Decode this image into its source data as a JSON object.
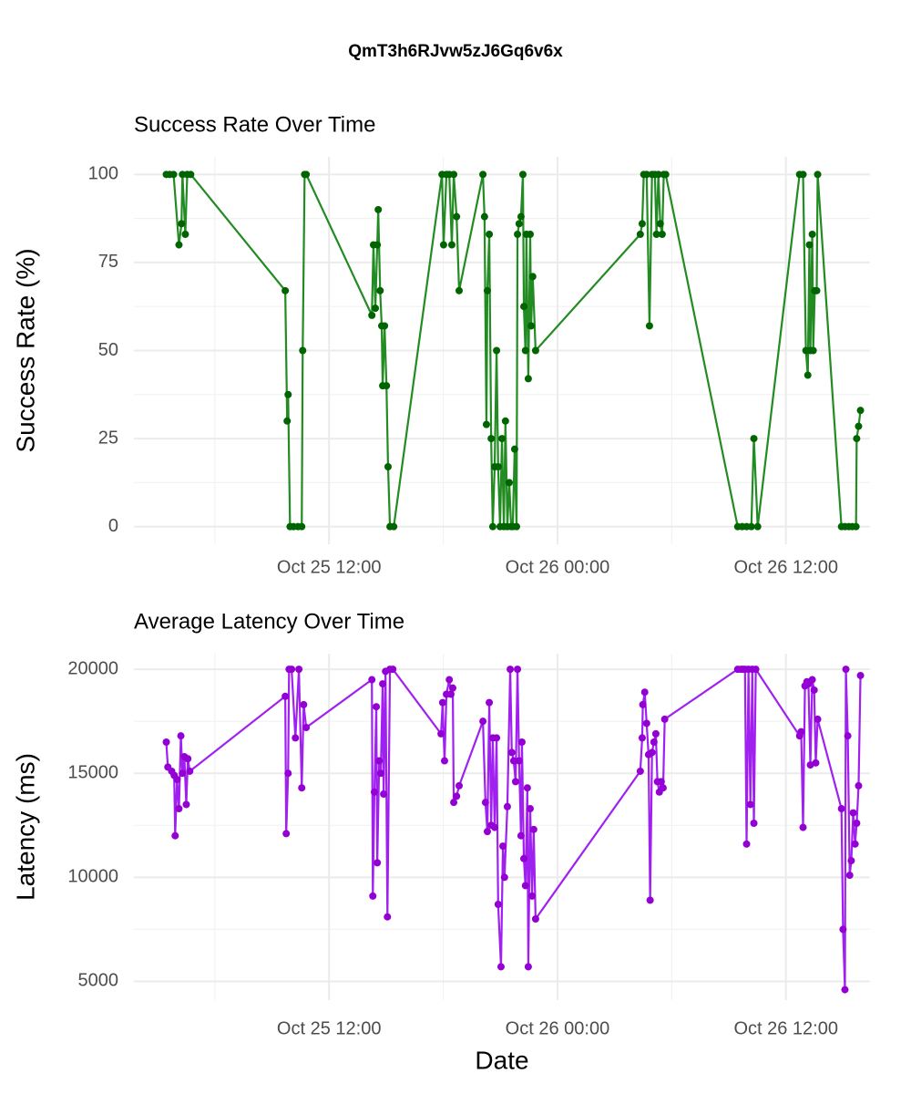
{
  "title": "QmT3h6RJvw5zJ6Gq6v6x",
  "chart_data": [
    {
      "type": "line",
      "title": "Success Rate Over Time",
      "ylabel": "Success Rate (%)",
      "color": "#228B22",
      "point_color": "#006400",
      "grid": true,
      "xlim": [
        "Oct 25 01:45",
        "Oct 26 16:25"
      ],
      "xticks": [
        "Oct 25 12:00",
        "Oct 26 00:00",
        "Oct 26 12:00"
      ],
      "ylim": [
        -5,
        105
      ],
      "yticks": [
        0,
        25,
        50,
        75,
        100
      ],
      "x": [
        "Oct 25 03:27",
        "Oct 25 03:38",
        "Oct 25 03:50",
        "Oct 25 04:07",
        "Oct 25 04:15",
        "Oct 25 04:18",
        "Oct 25 04:27",
        "Oct 25 04:33",
        "Oct 25 04:44",
        "Oct 25 09:42",
        "Oct 25 09:48",
        "Oct 25 09:51",
        "Oct 25 09:57",
        "Oct 25 10:08",
        "Oct 25 10:22",
        "Oct 25 10:34",
        "Oct 25 10:37",
        "Oct 25 10:43",
        "Oct 25 10:48",
        "Oct 25 14:15",
        "Oct 25 14:20",
        "Oct 25 14:26",
        "Oct 25 14:32",
        "Oct 25 14:35",
        "Oct 25 14:41",
        "Oct 25 14:46",
        "Oct 25 14:49",
        "Oct 25 14:55",
        "Oct 25 15:01",
        "Oct 25 15:06",
        "Oct 25 15:12",
        "Oct 25 15:24",
        "Oct 25 17:56",
        "Oct 25 18:01",
        "Oct 25 18:10",
        "Oct 25 18:19",
        "Oct 25 18:27",
        "Oct 25 18:33",
        "Oct 25 18:42",
        "Oct 25 18:50",
        "Oct 25 20:05",
        "Oct 25 20:10",
        "Oct 25 20:16",
        "Oct 25 20:19",
        "Oct 25 20:25",
        "Oct 25 20:31",
        "Oct 25 20:36",
        "Oct 25 20:42",
        "Oct 25 20:48",
        "Oct 25 20:53",
        "Oct 25 20:59",
        "Oct 25 21:05",
        "Oct 25 21:11",
        "Oct 25 21:16",
        "Oct 25 21:22",
        "Oct 25 21:28",
        "Oct 25 21:34",
        "Oct 25 21:39",
        "Oct 25 21:45",
        "Oct 25 21:51",
        "Oct 25 21:54",
        "Oct 25 21:59",
        "Oct 25 22:05",
        "Oct 25 22:11",
        "Oct 25 22:14",
        "Oct 25 22:19",
        "Oct 25 22:22",
        "Oct 25 22:28",
        "Oct 25 22:34",
        "Oct 25 22:37",
        "Oct 25 22:42",
        "Oct 25 22:51",
        "Oct 26 04:21",
        "Oct 26 04:27",
        "Oct 26 04:32",
        "Oct 26 04:41",
        "Oct 26 04:50",
        "Oct 26 04:58",
        "Oct 26 05:07",
        "Oct 26 05:12",
        "Oct 26 05:18",
        "Oct 26 05:24",
        "Oct 26 05:30",
        "Oct 26 05:35",
        "Oct 26 05:41",
        "Oct 26 09:28",
        "Oct 26 09:42",
        "Oct 26 09:56",
        "Oct 26 10:11",
        "Oct 26 10:19",
        "Oct 26 10:31",
        "Oct 26 12:43",
        "Oct 26 12:54",
        "Oct 26 13:03",
        "Oct 26 13:09",
        "Oct 26 13:14",
        "Oct 26 13:17",
        "Oct 26 13:23",
        "Oct 26 13:26",
        "Oct 26 13:31",
        "Oct 26 13:37",
        "Oct 26 13:40",
        "Oct 26 14:55",
        "Oct 26 15:06",
        "Oct 26 15:18",
        "Oct 26 15:29",
        "Oct 26 15:41",
        "Oct 26 15:43",
        "Oct 26 15:49",
        "Oct 26 15:55"
      ],
      "values": [
        100,
        100,
        100,
        80,
        86,
        100,
        83,
        100,
        100,
        67,
        30,
        37.5,
        0,
        0,
        0,
        0,
        50,
        100,
        100,
        60,
        80,
        62,
        80,
        90,
        67,
        57,
        40,
        57,
        40,
        17,
        0,
        0,
        100,
        80,
        100,
        100,
        80,
        100,
        88,
        67,
        100,
        88,
        29,
        67,
        83,
        25,
        0,
        17,
        50,
        17,
        0,
        25,
        0,
        30,
        0,
        12.5,
        0,
        0,
        22,
        0,
        83,
        86,
        88,
        100,
        62.5,
        50,
        83,
        42,
        83,
        57,
        71,
        50,
        83,
        86,
        100,
        100,
        57,
        100,
        100,
        83,
        100,
        86,
        83,
        100,
        100,
        0,
        0,
        0,
        0,
        25,
        0,
        100,
        100,
        50,
        43,
        80,
        50,
        83,
        50,
        67,
        67,
        100,
        0,
        0,
        0,
        0,
        0,
        25,
        28.5,
        33
      ]
    },
    {
      "type": "line",
      "title": "Average Latency Over Time",
      "ylabel": "Latency (ms)",
      "xlabel": "Date",
      "color": "#A020F0",
      "point_color": "#9400D3",
      "grid": true,
      "xlim": [
        "Oct 25 01:45",
        "Oct 26 16:25"
      ],
      "xticks": [
        "Oct 25 12:00",
        "Oct 26 00:00",
        "Oct 26 12:00"
      ],
      "ylim": [
        4100,
        20750
      ],
      "yticks": [
        5000,
        10000,
        15000,
        20000
      ],
      "x": [
        "Oct 25 03:27",
        "Oct 25 03:32",
        "Oct 25 03:44",
        "Oct 25 03:52",
        "Oct 25 03:55",
        "Oct 25 04:01",
        "Oct 25 04:07",
        "Oct 25 04:13",
        "Oct 25 04:18",
        "Oct 25 04:24",
        "Oct 25 04:30",
        "Oct 25 04:35",
        "Oct 25 04:41",
        "Oct 25 09:42",
        "Oct 25 09:45",
        "Oct 25 09:51",
        "Oct 25 09:54",
        "Oct 25 10:02",
        "Oct 25 10:14",
        "Oct 25 10:25",
        "Oct 25 10:34",
        "Oct 25 10:40",
        "Oct 25 10:48",
        "Oct 25 14:15",
        "Oct 25 14:18",
        "Oct 25 14:23",
        "Oct 25 14:29",
        "Oct 25 14:32",
        "Oct 25 14:38",
        "Oct 25 14:43",
        "Oct 25 14:49",
        "Oct 25 14:52",
        "Oct 25 14:58",
        "Oct 25 15:04",
        "Oct 25 15:12",
        "Oct 25 15:21",
        "Oct 25 17:53",
        "Oct 25 17:58",
        "Oct 25 18:04",
        "Oct 25 18:10",
        "Oct 25 18:19",
        "Oct 25 18:24",
        "Oct 25 18:30",
        "Oct 25 18:33",
        "Oct 25 18:42",
        "Oct 25 18:50",
        "Oct 25 20:05",
        "Oct 25 20:13",
        "Oct 25 20:19",
        "Oct 25 20:25",
        "Oct 25 20:31",
        "Oct 25 20:36",
        "Oct 25 20:42",
        "Oct 25 20:48",
        "Oct 25 20:53",
        "Oct 25 21:02",
        "Oct 25 21:08",
        "Oct 25 21:13",
        "Oct 25 21:22",
        "Oct 25 21:31",
        "Oct 25 21:36",
        "Oct 25 21:42",
        "Oct 25 21:48",
        "Oct 25 21:54",
        "Oct 25 21:59",
        "Oct 25 22:05",
        "Oct 25 22:08",
        "Oct 25 22:14",
        "Oct 25 22:19",
        "Oct 25 22:25",
        "Oct 25 22:28",
        "Oct 25 22:34",
        "Oct 25 22:40",
        "Oct 25 22:45",
        "Oct 25 22:51",
        "Oct 26 04:21",
        "Oct 26 04:27",
        "Oct 26 04:29",
        "Oct 26 04:35",
        "Oct 26 04:41",
        "Oct 26 04:47",
        "Oct 26 04:52",
        "Oct 26 04:58",
        "Oct 26 05:04",
        "Oct 26 05:10",
        "Oct 26 05:15",
        "Oct 26 05:21",
        "Oct 26 05:27",
        "Oct 26 05:33",
        "Oct 26 05:38",
        "Oct 26 09:28",
        "Oct 26 09:39",
        "Oct 26 09:45",
        "Oct 26 09:51",
        "Oct 26 09:56",
        "Oct 26 10:02",
        "Oct 26 10:08",
        "Oct 26 10:14",
        "Oct 26 10:19",
        "Oct 26 10:25",
        "Oct 26 12:43",
        "Oct 26 12:48",
        "Oct 26 12:54",
        "Oct 26 13:00",
        "Oct 26 13:06",
        "Oct 26 13:11",
        "Oct 26 13:17",
        "Oct 26 13:23",
        "Oct 26 13:29",
        "Oct 26 13:34",
        "Oct 26 13:40",
        "Oct 26 14:55",
        "Oct 26 15:00",
        "Oct 26 15:06",
        "Oct 26 15:09",
        "Oct 26 15:15",
        "Oct 26 15:21",
        "Oct 26 15:26",
        "Oct 26 15:32",
        "Oct 26 15:38",
        "Oct 26 15:43",
        "Oct 26 15:49",
        "Oct 26 15:55"
      ],
      "values": [
        16500,
        15300,
        15100,
        14900,
        12000,
        14700,
        13300,
        16800,
        15000,
        15800,
        13500,
        15700,
        15100,
        18700,
        12100,
        15000,
        20000,
        20000,
        16700,
        20000,
        14300,
        18300,
        17200,
        19500,
        9100,
        14100,
        18200,
        10700,
        15600,
        15000,
        19300,
        14000,
        19900,
        8100,
        20000,
        20000,
        16900,
        18400,
        15600,
        18800,
        19500,
        18800,
        19100,
        13600,
        13900,
        14400,
        17500,
        13600,
        12200,
        18400,
        12500,
        16700,
        12400,
        16700,
        8700,
        5700,
        11500,
        10000,
        13400,
        20000,
        16000,
        15600,
        14600,
        20000,
        15600,
        12000,
        16500,
        10900,
        9600,
        14300,
        5700,
        13300,
        9100,
        12300,
        8000,
        15100,
        16700,
        18300,
        18900,
        17400,
        15900,
        8900,
        16000,
        16500,
        16900,
        14600,
        14100,
        14600,
        14300,
        17600,
        20000,
        20000,
        20000,
        20000,
        11600,
        20000,
        13500,
        20000,
        12600,
        20000,
        16800,
        17000,
        12400,
        19200,
        19400,
        19300,
        15400,
        19500,
        19000,
        15500,
        17600,
        13300,
        7500,
        4600,
        20000,
        16800,
        10100,
        10800,
        13100,
        11600,
        12600,
        14400,
        19700
      ]
    }
  ]
}
